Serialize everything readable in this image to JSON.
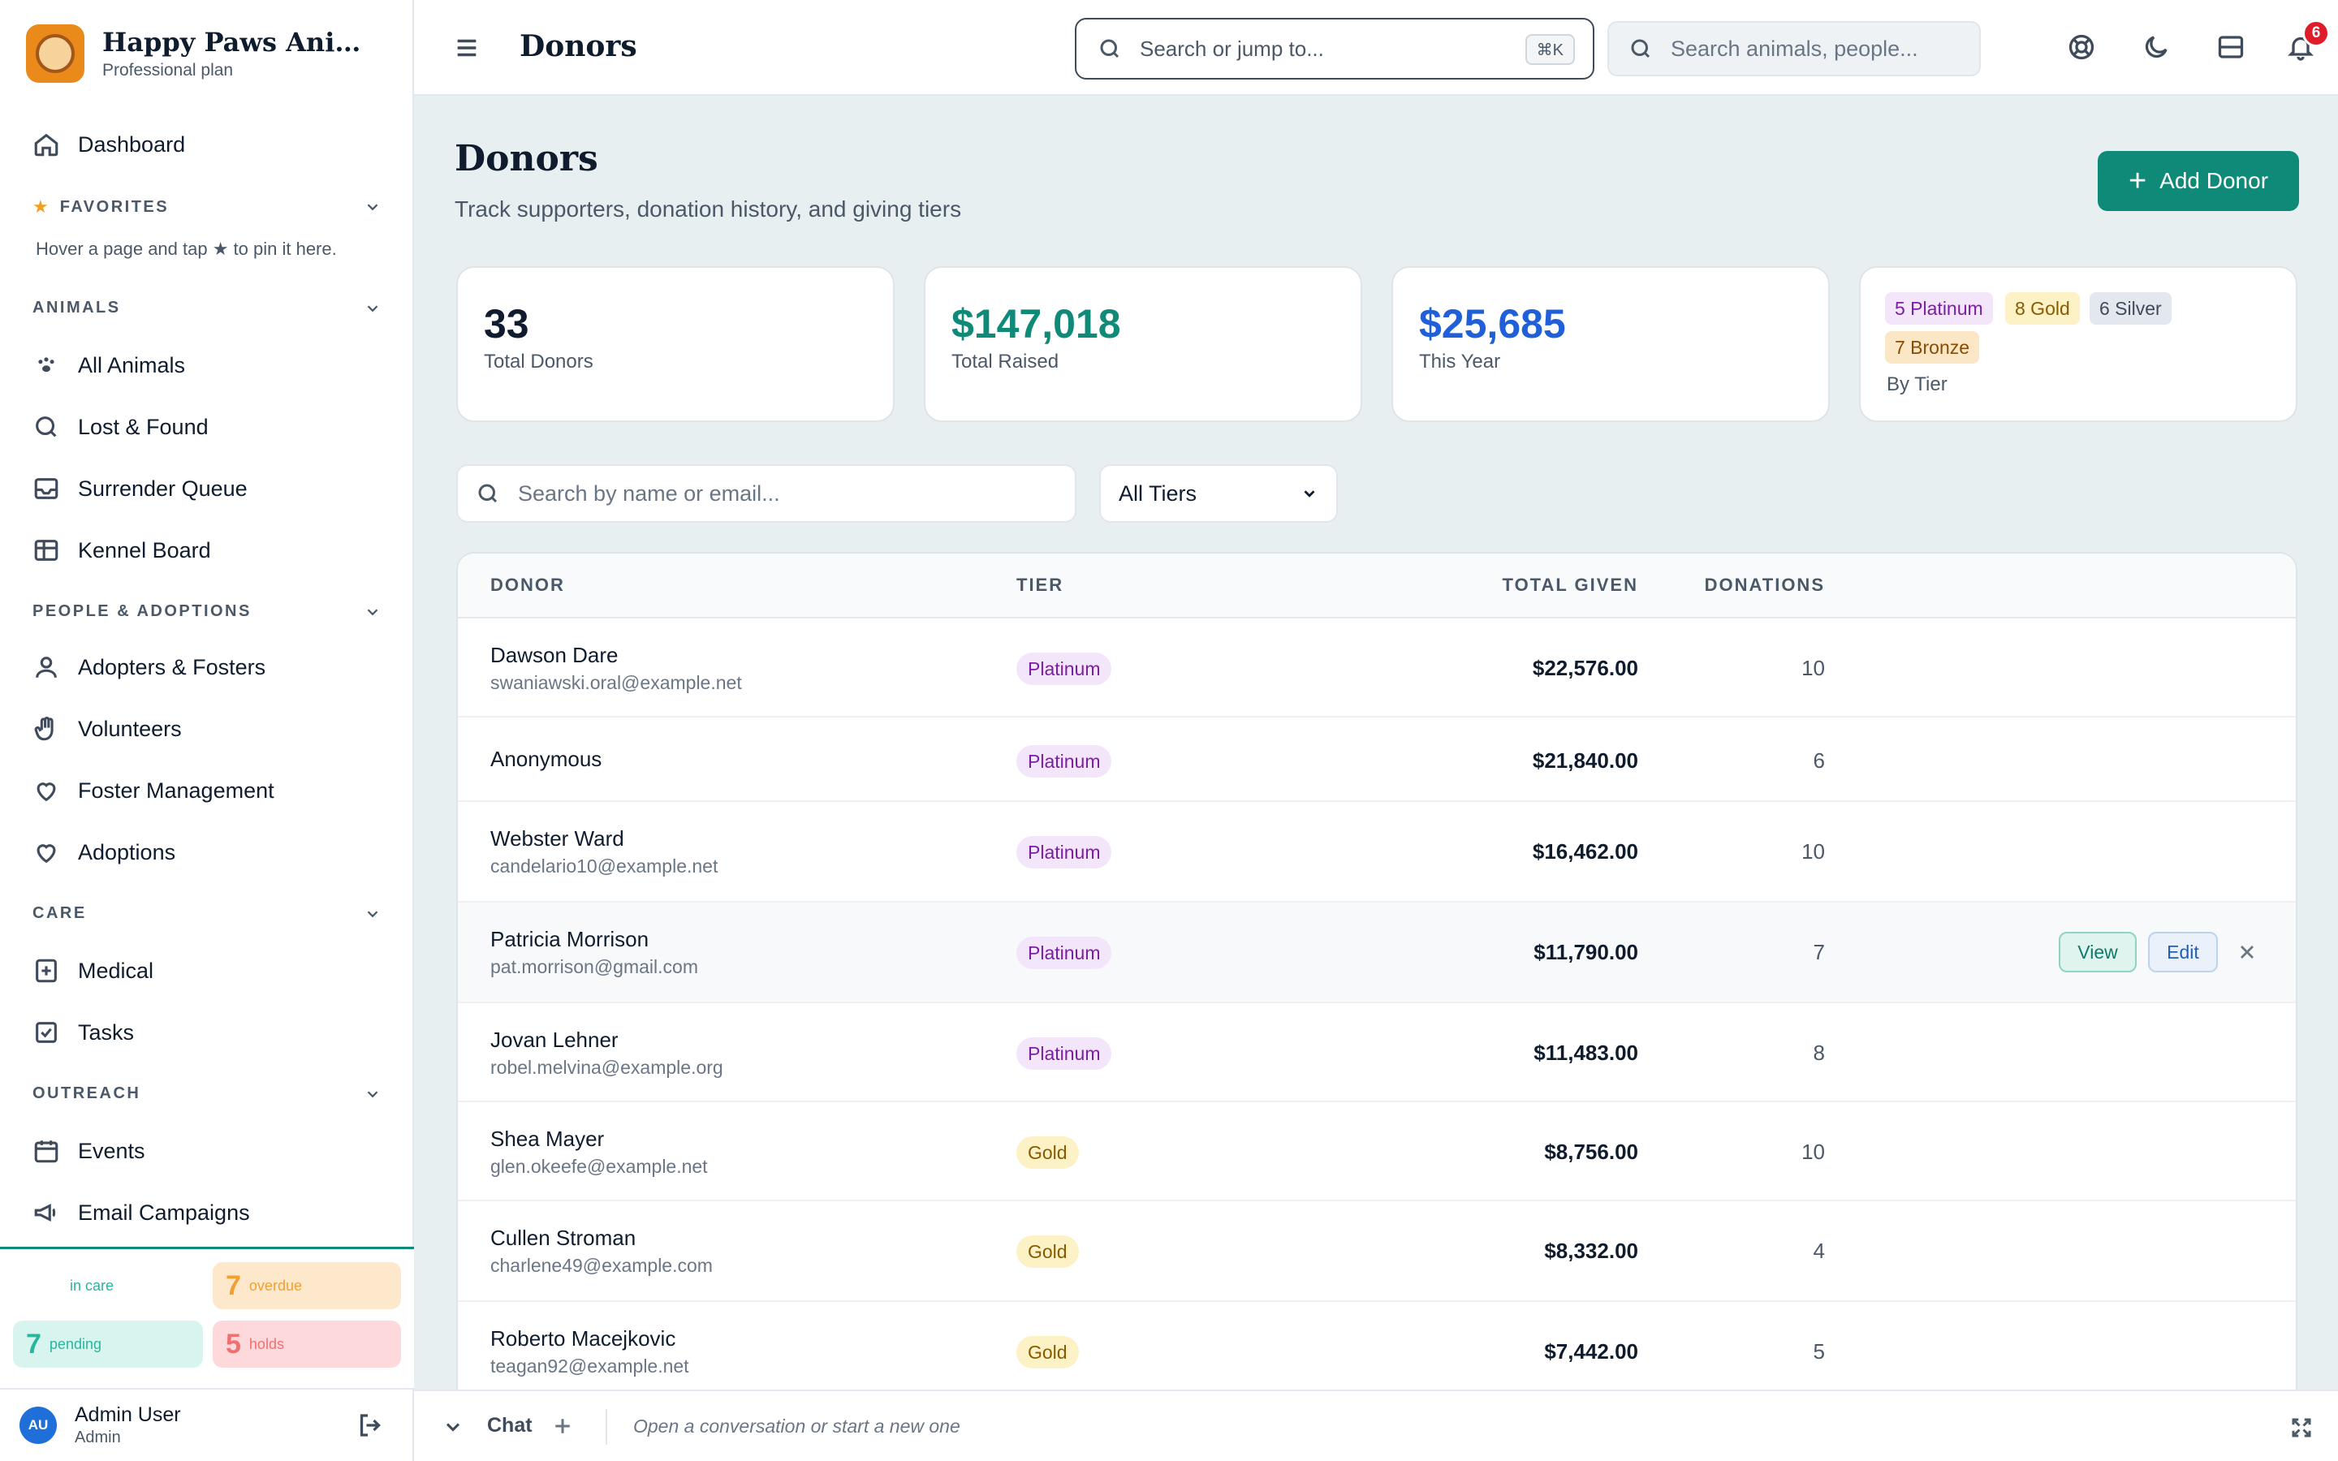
{
  "brand": {
    "name": "Happy Paws Animal ...",
    "plan": "Professional plan"
  },
  "sidebar": {
    "dashboard": "Dashboard",
    "favorites": {
      "title": "FAVORITES",
      "hint": "Hover a page and tap ★ to pin it here."
    },
    "sections": [
      {
        "title": "ANIMALS",
        "items": [
          {
            "label": "All Animals",
            "icon": "paw-icon"
          },
          {
            "label": "Lost & Found",
            "icon": "search-icon"
          },
          {
            "label": "Surrender Queue",
            "icon": "inbox-icon"
          },
          {
            "label": "Kennel Board",
            "icon": "grid-icon"
          }
        ]
      },
      {
        "title": "PEOPLE & ADOPTIONS",
        "items": [
          {
            "label": "Adopters & Fosters",
            "icon": "user-icon"
          },
          {
            "label": "Volunteers",
            "icon": "hand-icon"
          },
          {
            "label": "Foster Management",
            "icon": "heart-icon"
          },
          {
            "label": "Adoptions",
            "icon": "heart-icon"
          }
        ]
      },
      {
        "title": "CARE",
        "items": [
          {
            "label": "Medical",
            "icon": "medical-plus-icon"
          },
          {
            "label": "Tasks",
            "icon": "checkbox-icon"
          }
        ]
      },
      {
        "title": "OUTREACH",
        "items": [
          {
            "label": "Events",
            "icon": "calendar-icon"
          },
          {
            "label": "Email Campaigns",
            "icon": "megaphone-icon"
          }
        ]
      }
    ],
    "stats": {
      "in_care": {
        "label": "in care"
      },
      "overdue": {
        "num": "7",
        "label": "overdue"
      },
      "pending": {
        "num": "7",
        "label": "pending"
      },
      "holds": {
        "num": "5",
        "label": "holds"
      }
    },
    "user": {
      "initials": "AU",
      "name": "Admin User",
      "role": "Admin"
    }
  },
  "topbar": {
    "title": "Donors",
    "cmd_placeholder": "Search or jump to...",
    "cmd_shortcut": "⌘K",
    "search_placeholder": "Search animals, people...",
    "notifications": "6"
  },
  "page": {
    "title": "Donors",
    "subtitle": "Track supporters, donation history, and giving tiers",
    "add_button": "Add Donor",
    "stats": {
      "total_donors": {
        "value": "33",
        "label": "Total Donors"
      },
      "total_raised": {
        "value": "$147,018",
        "label": "Total Raised",
        "color": "#0f8a78"
      },
      "this_year": {
        "value": "$25,685",
        "label": "This Year",
        "color": "#1f5fd8"
      },
      "by_tier": {
        "platinum": "5 Platinum",
        "gold": "8 Gold",
        "silver": "6 Silver",
        "bronze": "7 Bronze",
        "label": "By Tier"
      }
    },
    "filter": {
      "placeholder": "Search by name or email...",
      "tier_selected": "All Tiers"
    },
    "table": {
      "headers": {
        "donor": "DONOR",
        "tier": "TIER",
        "total": "TOTAL GIVEN",
        "donations": "DONATIONS"
      },
      "actions": {
        "view": "View",
        "edit": "Edit"
      },
      "rows": [
        {
          "name": "Dawson Dare",
          "email": "swaniawski.oral@example.net",
          "tier": "Platinum",
          "total": "$22,576.00",
          "donations": "10"
        },
        {
          "name": "Anonymous",
          "email": "",
          "tier": "Platinum",
          "total": "$21,840.00",
          "donations": "6"
        },
        {
          "name": "Webster Ward",
          "email": "candelario10@example.net",
          "tier": "Platinum",
          "total": "$16,462.00",
          "donations": "10"
        },
        {
          "name": "Patricia Morrison",
          "email": "pat.morrison@gmail.com",
          "tier": "Platinum",
          "total": "$11,790.00",
          "donations": "7"
        },
        {
          "name": "Jovan Lehner",
          "email": "robel.melvina@example.org",
          "tier": "Platinum",
          "total": "$11,483.00",
          "donations": "8"
        },
        {
          "name": "Shea Mayer",
          "email": "glen.okeefe@example.net",
          "tier": "Gold",
          "total": "$8,756.00",
          "donations": "10"
        },
        {
          "name": "Cullen Stroman",
          "email": "charlene49@example.com",
          "tier": "Gold",
          "total": "$8,332.00",
          "donations": "4"
        },
        {
          "name": "Roberto Macejkovic",
          "email": "teagan92@example.net",
          "tier": "Gold",
          "total": "$7,442.00",
          "donations": "5"
        }
      ]
    }
  },
  "chat": {
    "label": "Chat",
    "hint": "Open a conversation or start a new one"
  }
}
